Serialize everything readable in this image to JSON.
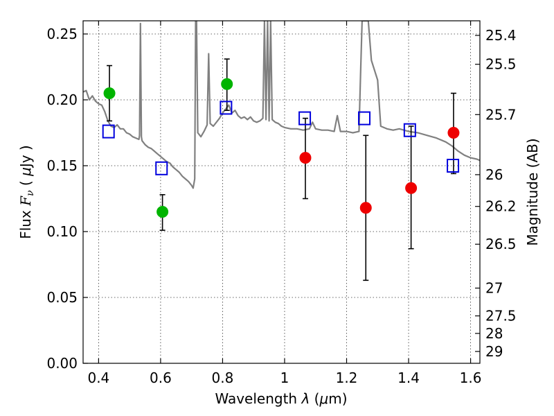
{
  "chart_data": {
    "type": "scatter",
    "xlabel": "Wavelength  λ (μm)",
    "ylabel": "Flux  F_ν  ( μJy )",
    "ylabel_right": "Magnitude (AB)",
    "xlim": [
      0.35,
      1.63
    ],
    "ylim": [
      0,
      0.26
    ],
    "grid": true,
    "x_ticks": [
      0.4,
      0.6,
      0.8,
      1.0,
      1.2,
      1.4,
      1.6
    ],
    "x_tick_labels": [
      "0.4",
      "0.6",
      "0.8",
      "1",
      "1.2",
      "1.4",
      "1.6"
    ],
    "y_ticks": [
      0.0,
      0.05,
      0.1,
      0.15,
      0.2,
      0.25
    ],
    "y_tick_labels": [
      "0.00",
      "0.05",
      "0.10",
      "0.15",
      "0.20",
      "0.25"
    ],
    "right_ticks": [
      {
        "label": "25.4",
        "flux": 0.2489
      },
      {
        "label": "25.5",
        "flux": 0.227
      },
      {
        "label": "25.7",
        "flux": 0.1888
      },
      {
        "label": "26",
        "flux": 0.1432
      },
      {
        "label": "26.2",
        "flux": 0.1191
      },
      {
        "label": "26.5",
        "flux": 0.0904
      },
      {
        "label": "27",
        "flux": 0.0571
      },
      {
        "label": "27.5",
        "flux": 0.036
      },
      {
        "label": "28",
        "flux": 0.0227
      },
      {
        "label": "29",
        "flux": 0.009
      }
    ],
    "series": [
      {
        "color": "#00b400",
        "marker": "circle",
        "points": [
          {
            "x": 0.435,
            "y": 0.205,
            "err_lo": 0.184,
            "err_hi": 0.226
          },
          {
            "x": 0.606,
            "y": 0.115,
            "err_lo": 0.101,
            "err_hi": 0.128
          },
          {
            "x": 0.814,
            "y": 0.212,
            "err_lo": 0.192,
            "err_hi": 0.231
          }
        ]
      },
      {
        "color": "#ee0000",
        "marker": "circle",
        "points": [
          {
            "x": 1.067,
            "y": 0.156,
            "err_lo": 0.125,
            "err_hi": 0.186
          },
          {
            "x": 1.262,
            "y": 0.118,
            "err_lo": 0.063,
            "err_hi": 0.173
          },
          {
            "x": 1.408,
            "y": 0.133,
            "err_lo": 0.087,
            "err_hi": 0.18
          },
          {
            "x": 1.545,
            "y": 0.175,
            "err_lo": 0.144,
            "err_hi": 0.205
          }
        ]
      },
      {
        "color": "#0000dd",
        "marker": "open-square",
        "points": [
          {
            "x": 0.432,
            "y": 0.176
          },
          {
            "x": 0.603,
            "y": 0.148
          },
          {
            "x": 0.811,
            "y": 0.194
          },
          {
            "x": 1.065,
            "y": 0.186
          },
          {
            "x": 1.257,
            "y": 0.186
          },
          {
            "x": 1.404,
            "y": 0.177
          },
          {
            "x": 1.543,
            "y": 0.15
          }
        ]
      }
    ],
    "spectrum": {
      "color": "#808080",
      "points": [
        [
          0.35,
          0.206
        ],
        [
          0.36,
          0.207
        ],
        [
          0.37,
          0.2
        ],
        [
          0.38,
          0.203
        ],
        [
          0.39,
          0.199
        ],
        [
          0.4,
          0.197
        ],
        [
          0.41,
          0.196
        ],
        [
          0.42,
          0.191
        ],
        [
          0.43,
          0.184
        ],
        [
          0.44,
          0.18
        ],
        [
          0.45,
          0.179
        ],
        [
          0.46,
          0.181
        ],
        [
          0.47,
          0.178
        ],
        [
          0.48,
          0.178
        ],
        [
          0.49,
          0.175
        ],
        [
          0.5,
          0.174
        ],
        [
          0.51,
          0.172
        ],
        [
          0.52,
          0.171
        ],
        [
          0.53,
          0.17
        ],
        [
          0.532,
          0.173
        ],
        [
          0.535,
          0.258
        ],
        [
          0.538,
          0.172
        ],
        [
          0.54,
          0.169
        ],
        [
          0.55,
          0.166
        ],
        [
          0.56,
          0.164
        ],
        [
          0.57,
          0.163
        ],
        [
          0.58,
          0.161
        ],
        [
          0.59,
          0.159
        ],
        [
          0.6,
          0.157
        ],
        [
          0.61,
          0.155
        ],
        [
          0.62,
          0.153
        ],
        [
          0.63,
          0.152
        ],
        [
          0.64,
          0.149
        ],
        [
          0.65,
          0.147
        ],
        [
          0.66,
          0.145
        ],
        [
          0.67,
          0.142
        ],
        [
          0.68,
          0.14
        ],
        [
          0.69,
          0.138
        ],
        [
          0.7,
          0.135
        ],
        [
          0.705,
          0.133
        ],
        [
          0.71,
          0.14
        ],
        [
          0.713,
          0.26
        ],
        [
          0.716,
          0.26
        ],
        [
          0.72,
          0.175
        ],
        [
          0.73,
          0.172
        ],
        [
          0.74,
          0.176
        ],
        [
          0.75,
          0.181
        ],
        [
          0.755,
          0.235
        ],
        [
          0.76,
          0.182
        ],
        [
          0.77,
          0.18
        ],
        [
          0.78,
          0.183
        ],
        [
          0.79,
          0.186
        ],
        [
          0.8,
          0.19
        ],
        [
          0.81,
          0.193
        ],
        [
          0.82,
          0.196
        ],
        [
          0.83,
          0.19
        ],
        [
          0.84,
          0.192
        ],
        [
          0.85,
          0.188
        ],
        [
          0.86,
          0.186
        ],
        [
          0.87,
          0.187
        ],
        [
          0.88,
          0.185
        ],
        [
          0.89,
          0.187
        ],
        [
          0.9,
          0.184
        ],
        [
          0.91,
          0.183
        ],
        [
          0.92,
          0.184
        ],
        [
          0.93,
          0.186
        ],
        [
          0.935,
          0.26
        ],
        [
          0.94,
          0.185
        ],
        [
          0.945,
          0.26
        ],
        [
          0.95,
          0.184
        ],
        [
          0.955,
          0.26
        ],
        [
          0.96,
          0.185
        ],
        [
          0.97,
          0.183
        ],
        [
          0.98,
          0.182
        ],
        [
          0.99,
          0.18
        ],
        [
          1.0,
          0.179
        ],
        [
          1.02,
          0.178
        ],
        [
          1.04,
          0.178
        ],
        [
          1.06,
          0.177
        ],
        [
          1.08,
          0.178
        ],
        [
          1.09,
          0.183
        ],
        [
          1.1,
          0.178
        ],
        [
          1.12,
          0.177
        ],
        [
          1.14,
          0.177
        ],
        [
          1.16,
          0.176
        ],
        [
          1.17,
          0.188
        ],
        [
          1.18,
          0.176
        ],
        [
          1.2,
          0.176
        ],
        [
          1.22,
          0.175
        ],
        [
          1.24,
          0.176
        ],
        [
          1.245,
          0.22
        ],
        [
          1.25,
          0.26
        ],
        [
          1.26,
          0.26
        ],
        [
          1.27,
          0.26
        ],
        [
          1.28,
          0.23
        ],
        [
          1.3,
          0.215
        ],
        [
          1.31,
          0.18
        ],
        [
          1.33,
          0.178
        ],
        [
          1.35,
          0.177
        ],
        [
          1.37,
          0.178
        ],
        [
          1.4,
          0.176
        ],
        [
          1.43,
          0.175
        ],
        [
          1.46,
          0.173
        ],
        [
          1.49,
          0.171
        ],
        [
          1.52,
          0.168
        ],
        [
          1.54,
          0.165
        ],
        [
          1.56,
          0.161
        ],
        [
          1.58,
          0.158
        ],
        [
          1.6,
          0.156
        ],
        [
          1.62,
          0.155
        ],
        [
          1.63,
          0.154
        ]
      ]
    }
  }
}
